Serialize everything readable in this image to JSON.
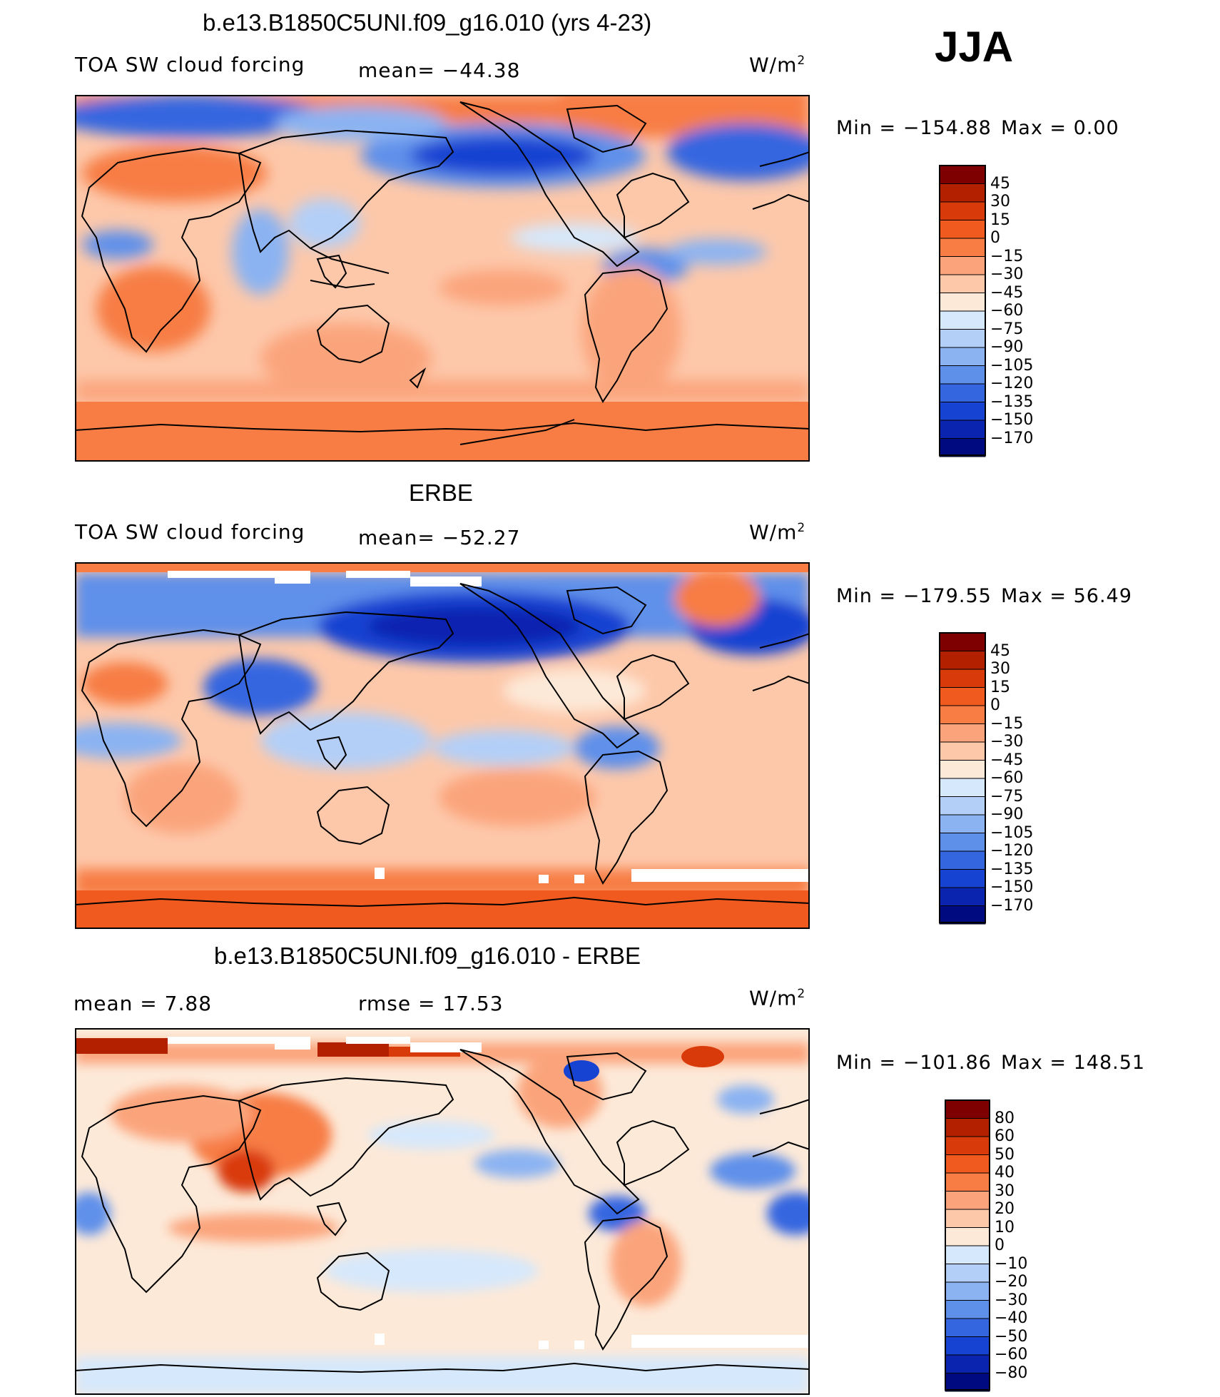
{
  "season": "JJA",
  "unit_text": "W/m",
  "unit_sup": "2",
  "panels": [
    {
      "title": "b.e13.B1850C5UNI.f09_g16.010 (yrs 4-23)",
      "left_label": "TOA SW cloud forcing",
      "center_label": "mean= −44.38",
      "min_text": "Min  =  −154.88",
      "max_text": "Max  =     0.00",
      "colorbar_labels": [
        "45",
        "30",
        "15",
        "0",
        "−15",
        "−30",
        "−45",
        "−60",
        "−75",
        "−90",
        "−105",
        "−120",
        "−135",
        "−150",
        "−170"
      ]
    },
    {
      "title": "ERBE",
      "left_label": "TOA SW cloud forcing",
      "center_label": "mean= −52.27",
      "min_text": "Min  =  −179.55",
      "max_text": "Max  =   56.49",
      "colorbar_labels": [
        "45",
        "30",
        "15",
        "0",
        "−15",
        "−30",
        "−45",
        "−60",
        "−75",
        "−90",
        "−105",
        "−120",
        "−135",
        "−150",
        "−170"
      ]
    },
    {
      "title": "b.e13.B1850C5UNI.f09_g16.010 - ERBE",
      "left_label": "mean  =     7.88",
      "center_label": "rmse  =    17.53",
      "min_text": "Min  =  −101.86",
      "max_text": "Max  =  148.51",
      "colorbar_labels": [
        "80",
        "60",
        "50",
        "40",
        "30",
        "20",
        "10",
        "0",
        "−10",
        "−20",
        "−30",
        "−40",
        "−50",
        "−60",
        "−80"
      ]
    }
  ],
  "colors": {
    "abs_scale": [
      "#7f0000",
      "#b22000",
      "#d93a0a",
      "#f05a1e",
      "#f77d45",
      "#fba47c",
      "#fdc8aa",
      "#fde9d8",
      "#d6e8fb",
      "#b4cff7",
      "#8bb3f2",
      "#5e90ea",
      "#3466e0",
      "#1743d2",
      "#0a24b0",
      "#000a80"
    ],
    "diff_scale": [
      "#7f0000",
      "#b22000",
      "#d93a0a",
      "#f05a1e",
      "#f77d45",
      "#fba47c",
      "#fdc8aa",
      "#fde9d8",
      "#d6e8fb",
      "#b4cff7",
      "#8bb3f2",
      "#5e90ea",
      "#3466e0",
      "#1743d2",
      "#0a24b0",
      "#000a80"
    ]
  }
}
